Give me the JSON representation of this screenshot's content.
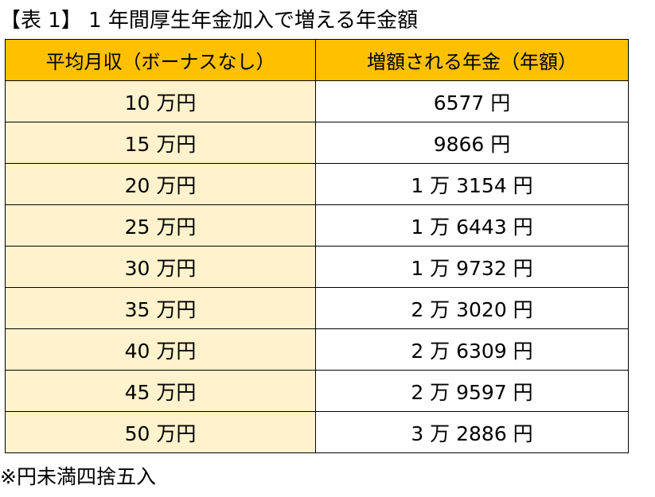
{
  "title": "【表 1】 1 年間厚生年金加入で増える年金額",
  "table": {
    "headers": {
      "income": "平均月収（ボーナスなし）",
      "amount": "増額される年金（年額）"
    },
    "rows": [
      {
        "income": "10 万円",
        "amount": "6577 円"
      },
      {
        "income": "15 万円",
        "amount": "9866 円"
      },
      {
        "income": "20 万円",
        "amount": "1 万 3154 円"
      },
      {
        "income": "25 万円",
        "amount": "1 万 6443 円"
      },
      {
        "income": "30 万円",
        "amount": "1 万 9732 円"
      },
      {
        "income": "35 万円",
        "amount": "2 万 3020 円"
      },
      {
        "income": "40 万円",
        "amount": "2 万 6309 円"
      },
      {
        "income": "45 万円",
        "amount": "2 万 9597 円"
      },
      {
        "income": "50 万円",
        "amount": "3 万 2886 円"
      }
    ]
  },
  "note": "※円未満四捨五入",
  "colors": {
    "header_bg": "#ffc000",
    "income_cell_bg": "#fff2cc",
    "amount_cell_bg": "#ffffff",
    "border": "#000000"
  }
}
